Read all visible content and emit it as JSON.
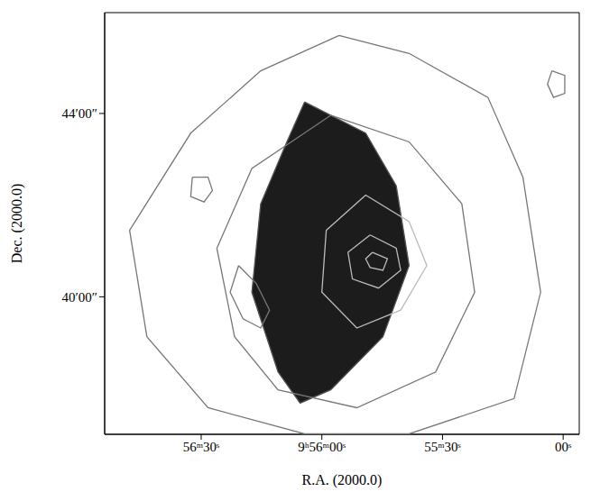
{
  "chart_data": {
    "type": "contour",
    "x_label": "R.A. (2000.0)",
    "y_label": "Dec. (2000.0)",
    "xlim": [
      114,
      -4
    ],
    "ylim": [
      37,
      46.2
    ],
    "xticks": [
      {
        "value": 90,
        "label": "56ᵐ30ˢ"
      },
      {
        "value": 60,
        "label": "9ʰ56ᵐ00ˢ"
      },
      {
        "value": 30,
        "label": "55ᵐ30ˢ"
      },
      {
        "value": 0,
        "label": "00ˢ"
      }
    ],
    "yticks": [
      {
        "value": 44,
        "label": "44′00″"
      },
      {
        "value": 40,
        "label": "40′00″"
      }
    ],
    "series": [
      {
        "type": "area",
        "color": "#1c1c1c",
        "x": [
          64.3,
          49.1,
          41.5,
          38.3,
          44.8,
          57.8,
          65.4,
          70.9,
          77.4,
          75.2,
          68.7
        ],
        "values": [
          44.25,
          43.57,
          42.42,
          40.68,
          39.13,
          37.97,
          37.68,
          38.36,
          40.1,
          42.03,
          43.38
        ]
      },
      {
        "type": "line",
        "color": "#777777",
        "x": [
          55.7,
          38.3,
          18.7,
          10.0,
          5.6,
          12.2,
          38.3,
          64.3,
          88.3,
          103.5,
          107.8,
          92.6,
          75.2
        ],
        "values": [
          45.7,
          45.31,
          44.35,
          42.61,
          40.1,
          37.78,
          37.01,
          37.01,
          37.58,
          39.13,
          41.45,
          43.57,
          44.93
        ]
      },
      {
        "type": "line",
        "color": "#777777",
        "x": [
          57.8,
          38.3,
          25.2,
          22.0,
          31.7,
          51.3,
          70.9,
          81.7,
          86.1,
          77.4
        ],
        "values": [
          43.96,
          43.38,
          42.03,
          40.1,
          38.36,
          37.58,
          37.97,
          39.13,
          41.06,
          42.8
        ]
      },
      {
        "type": "line",
        "color": "#bbbbbb",
        "x": [
          49.1,
          38.3,
          33.9,
          40.4,
          51.3,
          60.0,
          58.9
        ],
        "values": [
          42.22,
          41.64,
          40.68,
          39.71,
          39.32,
          40.1,
          41.45
        ]
      },
      {
        "type": "line",
        "color": "#bbbbbb",
        "x": [
          48.0,
          41.5,
          40.4,
          45.9,
          52.4,
          53.5
        ],
        "values": [
          41.35,
          41.06,
          40.58,
          40.19,
          40.39,
          40.97
        ]
      },
      {
        "type": "line",
        "color": "#bbbbbb",
        "x": [
          47.4,
          43.7,
          44.8,
          48.0,
          49.1
        ],
        "values": [
          40.97,
          40.83,
          40.58,
          40.64,
          40.83
        ]
      },
      {
        "type": "line",
        "color": "#777777",
        "x": [
          2.8,
          -0.4,
          -0.4,
          2.4,
          3.9
        ],
        "values": [
          44.93,
          44.83,
          44.44,
          44.35,
          44.64
        ]
      },
      {
        "type": "line",
        "color": "#777777",
        "x": [
          92.2,
          88.3,
          87.2,
          89.3,
          92.6
        ],
        "values": [
          42.61,
          42.61,
          42.32,
          42.07,
          42.19
        ]
      },
      {
        "type": "line",
        "color": "#777777",
        "x": [
          80.7,
          76.3,
          73.0,
          75.2,
          79.6,
          82.8
        ],
        "values": [
          40.68,
          40.29,
          39.71,
          39.32,
          39.52,
          40.1
        ]
      }
    ]
  }
}
